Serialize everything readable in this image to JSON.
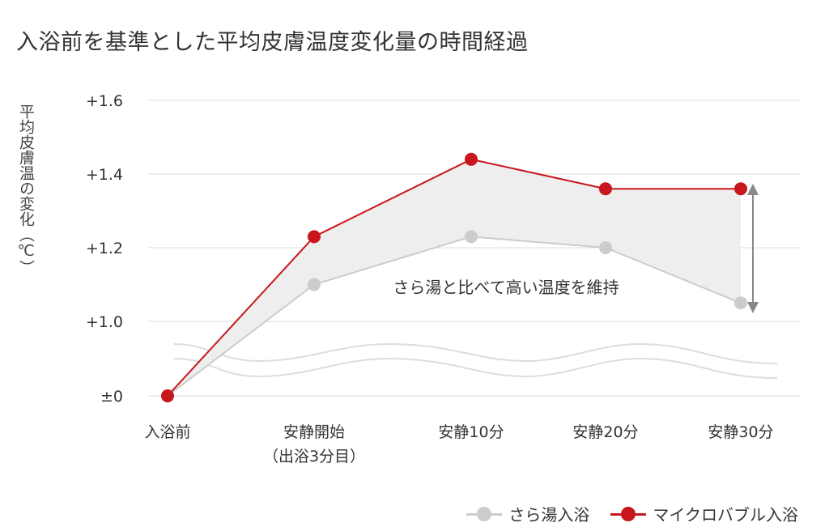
{
  "title": "入浴前を基準とした平均皮膚温度変化量の時間経過",
  "chart_data": {
    "type": "line",
    "title": "入浴前を基準とした平均皮膚温度変化量の時間経過",
    "ylabel": "平均皮膚温の変化（℃）",
    "xlabel": "",
    "categories": [
      "入浴前",
      "安静開始\n（出浴3分目）",
      "安静10分",
      "安静20分",
      "安静30分"
    ],
    "y_ticks": [
      "±0",
      "+1.0",
      "+1.2",
      "+1.4",
      "+1.6"
    ],
    "y_tick_values": [
      0,
      1.0,
      1.2,
      1.4,
      1.6
    ],
    "axis_break": "between ±0 and +1.0",
    "ylim": [
      0,
      1.6
    ],
    "grid": true,
    "legend_position": "bottom-right",
    "series": [
      {
        "name": "さら湯入浴",
        "color": "#cccccc",
        "values": [
          0,
          1.1,
          1.23,
          1.2,
          1.05
        ]
      },
      {
        "name": "マイクロバブル入浴",
        "color": "#c8161d",
        "values": [
          0,
          1.23,
          1.44,
          1.36,
          1.36
        ]
      }
    ],
    "annotation": "さら湯と比べて高い温度を維持"
  }
}
